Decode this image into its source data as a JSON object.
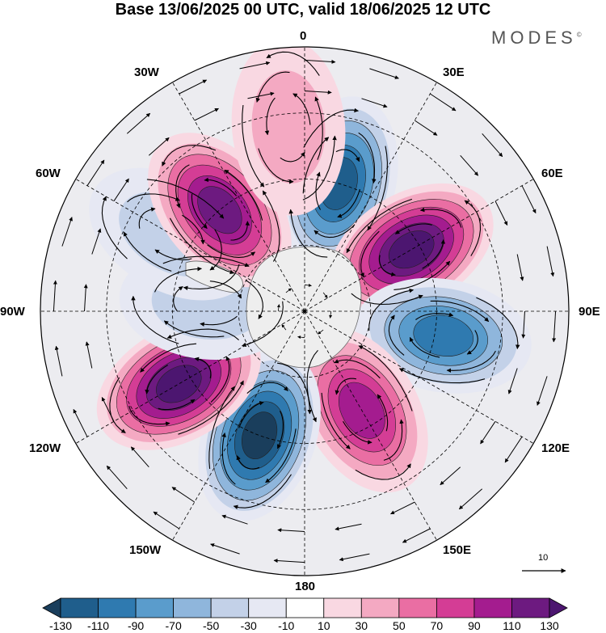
{
  "title": "Base 13/06/2025 00 UTC, valid 18/06/2025 12 UTC",
  "brand": "MODES",
  "brand_mark": "©",
  "longitude_labels": [
    "0",
    "30E",
    "60E",
    "90E",
    "120E",
    "150E",
    "180",
    "150W",
    "120W",
    "90W",
    "60W",
    "30W"
  ],
  "vector_scale_label": "10",
  "colorbar": {
    "labels": [
      "-130",
      "-110",
      "-90",
      "-70",
      "-50",
      "-30",
      "-10",
      "10",
      "30",
      "50",
      "70",
      "90",
      "110",
      "130"
    ],
    "colors": [
      "#1a3e5c",
      "#1f5e8c",
      "#2f7ab0",
      "#5a9ccc",
      "#8fb6dc",
      "#c3d1e8",
      "#e6e8f3",
      "#ffffff",
      "#f9d8e2",
      "#f4a9c2",
      "#ea6ea3",
      "#d43d95",
      "#a41c8f",
      "#6d1a80",
      "#4c1670"
    ]
  },
  "anomaly_centers": [
    {
      "lon": 15,
      "colat": 30,
      "value": -120
    },
    {
      "lon": 60,
      "colat": 28,
      "value": 130
    },
    {
      "lon": 100,
      "colat": 32,
      "value": -100
    },
    {
      "lon": 150,
      "colat": 26,
      "value": 90
    },
    {
      "lon": 200,
      "colat": 30,
      "value": -140
    },
    {
      "lon": 240,
      "colat": 33,
      "value": 140
    },
    {
      "lon": 275,
      "colat": 22,
      "value": -40
    },
    {
      "lon": 300,
      "colat": 35,
      "value": -40
    },
    {
      "lon": 320,
      "colat": 30,
      "value": 110
    },
    {
      "lon": 355,
      "colat": 42,
      "value": 35
    }
  ]
}
